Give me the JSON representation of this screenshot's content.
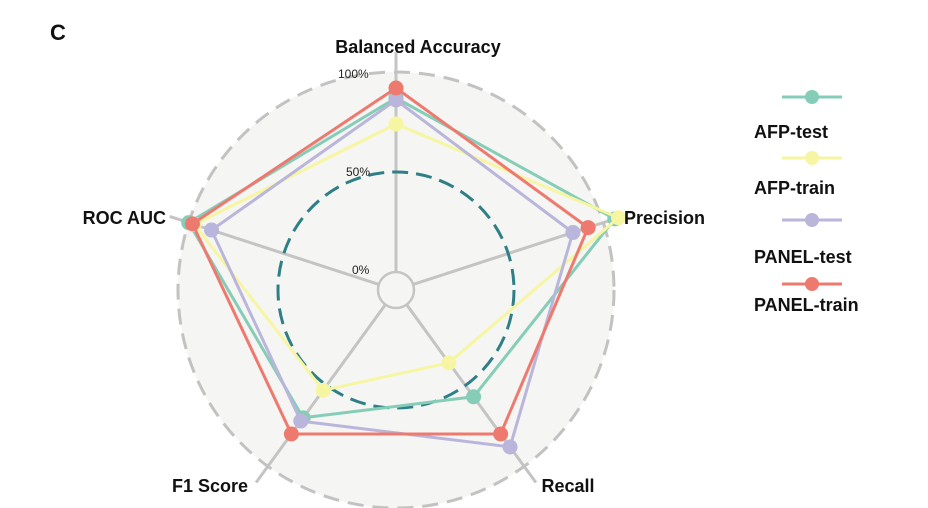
{
  "panel_label": "C",
  "colors": {
    "background_disc": "#f5f5f3",
    "outer_ring": "#c2c2c2",
    "spokes": "#c4c4c4",
    "mid_ring": "#2e7f86"
  },
  "chart_data": {
    "type": "radar",
    "axes": [
      "Balanced Accuracy",
      "Precision",
      "Recall",
      "F1 Score",
      "ROC AUC"
    ],
    "tick_labels": [
      "0%",
      "50%",
      "100%"
    ],
    "rlim": [
      0,
      100
    ],
    "grid": true,
    "legend_position": "right",
    "series": [
      {
        "name": "AFP-test",
        "color": "#86cdb8",
        "values": [
          87,
          106,
          57,
          70,
          100
        ]
      },
      {
        "name": "AFP-train",
        "color": "#f6f6a2",
        "values": [
          74,
          108,
          36,
          53,
          97
        ]
      },
      {
        "name": "PANEL-test",
        "color": "#bab5da",
        "values": [
          86,
          84,
          88,
          72,
          88
        ]
      },
      {
        "name": "PANEL-train",
        "color": "#ee7a6f",
        "values": [
          92,
          92,
          80,
          80,
          98
        ]
      }
    ]
  }
}
